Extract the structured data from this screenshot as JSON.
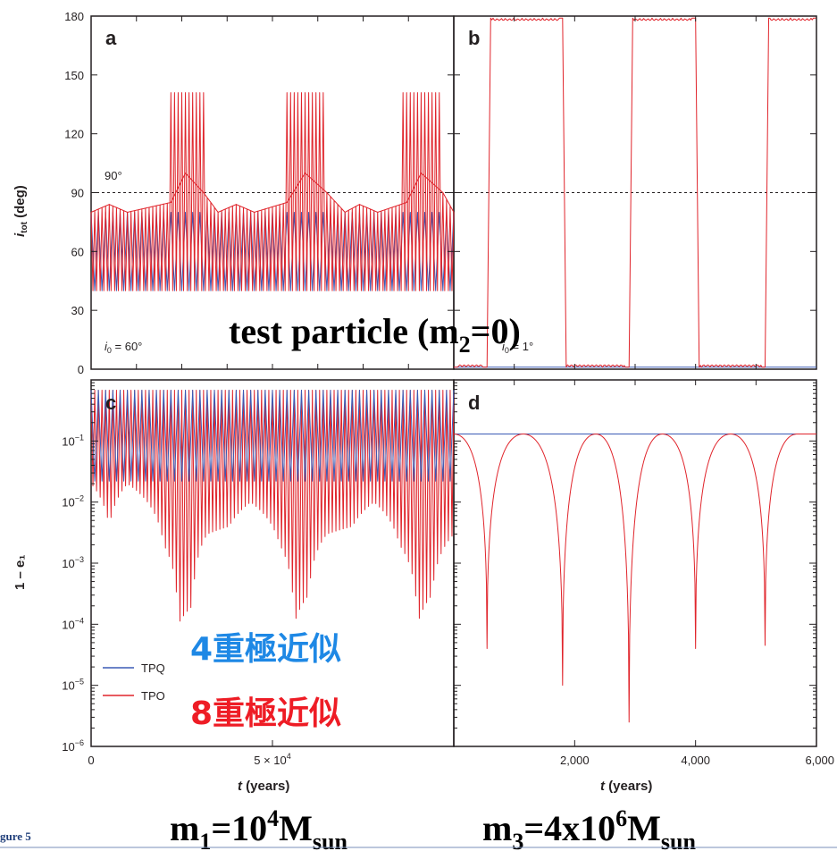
{
  "colors": {
    "tpq": "#3b5bb5",
    "tpo": "#e0242b",
    "frame": "#231f20",
    "jp_blue": "#1e88e5",
    "jp_red": "#ee1c25"
  },
  "figure_label": "gure 5",
  "overlay": {
    "test_particle_prefix": "test particle (m",
    "test_particle_sub": "2",
    "test_particle_suffix": "=0)",
    "mass_m1": "m",
    "mass_m1_sub": "1",
    "mass_m1_eq": "=10",
    "mass_m1_exp": "4",
    "mass_m1_unit": "M",
    "mass_m1_unit_sub": "sun",
    "mass_m3": "m",
    "mass_m3_sub": "3",
    "mass_m3_eq": "=4x10",
    "mass_m3_exp": "6",
    "mass_m3_unit": "M",
    "mass_m3_unit_sub": "sun",
    "quad_label": "4重極近似",
    "oct_label": "8重極近似"
  },
  "chart_data": [
    {
      "panel": "a",
      "type": "line",
      "ylabel_main": "i",
      "ylabel_sub": "tot",
      "ylabel_suffix": " (deg)",
      "ylim": [
        0,
        180
      ],
      "yticks": [
        "0",
        "30",
        "60",
        "90",
        "120",
        "150",
        "180"
      ],
      "xlim": [
        0,
        100000
      ],
      "xticks": [],
      "hline": {
        "y": 90,
        "label": "90°"
      },
      "annotation_main": "i",
      "annotation_sub": "0",
      "annotation_suffix": " = 60°",
      "series": [
        {
          "name": "TPQ",
          "band": [
            40,
            80
          ],
          "period": 2000
        },
        {
          "name": "TPO",
          "low": 40,
          "envelope": [
            [
              0,
              80
            ],
            [
              5000,
              84
            ],
            [
              10000,
              80
            ],
            [
              22000,
              85
            ],
            [
              26000,
              100
            ],
            [
              31000,
              90
            ],
            [
              35000,
              80
            ],
            [
              40000,
              84
            ],
            [
              45000,
              80
            ],
            [
              54000,
              85
            ],
            [
              59000,
              100
            ],
            [
              65000,
              90
            ],
            [
              70000,
              80
            ],
            [
              74000,
              84
            ],
            [
              79000,
              80
            ],
            [
              87000,
              85
            ],
            [
              91000,
              100
            ],
            [
              97000,
              90
            ],
            [
              100000,
              80
            ]
          ],
          "spikes": [
            [
              22000,
              31000,
              141
            ],
            [
              54000,
              64000,
              141
            ],
            [
              86000,
              96000,
              141
            ]
          ],
          "period": 1000
        }
      ]
    },
    {
      "panel": "b",
      "type": "line",
      "ylim": [
        0,
        180
      ],
      "xlim": [
        0,
        6000
      ],
      "xticks": [],
      "hline": {
        "y": 90
      },
      "annotation_main": "i",
      "annotation_sub": "0",
      "annotation_suffix": " = 1°",
      "series": [
        {
          "name": "TPQ",
          "values_const": 1
        },
        {
          "name": "TPO",
          "flip_times": [
            [
              0,
              550,
              1
            ],
            [
              550,
              1800,
              179
            ],
            [
              1800,
              2900,
              1
            ],
            [
              2900,
              4000,
              179
            ],
            [
              4000,
              5150,
              1
            ],
            [
              5150,
              6000,
              179
            ]
          ]
        }
      ]
    },
    {
      "panel": "c",
      "type": "line",
      "xlabel_main": "t",
      "xlabel_suffix": " (years)",
      "ylabel": "1 – e₁",
      "yscale": "log",
      "ylim": [
        1e-06,
        1
      ],
      "yticks": [
        {
          "base": "10",
          "exp": "−6"
        },
        {
          "base": "10",
          "exp": "−5"
        },
        {
          "base": "10",
          "exp": "−4"
        },
        {
          "base": "10",
          "exp": "−3"
        },
        {
          "base": "10",
          "exp": "−2"
        },
        {
          "base": "10",
          "exp": "−1"
        }
      ],
      "xlim": [
        0,
        100000
      ],
      "xticks": [
        {
          "value": 0,
          "label": "0"
        },
        {
          "value": 50000,
          "label": "5 × 10",
          "exp": "4"
        }
      ],
      "legend": [
        {
          "name": "TPQ"
        },
        {
          "name": "TPO"
        }
      ],
      "series": [
        {
          "name": "TPQ",
          "min": 0.022,
          "max": 0.68,
          "period": 2000
        },
        {
          "name": "TPO",
          "max": 0.68,
          "period": 1000,
          "min_profile": [
            [
              0,
              0.02
            ],
            [
              5000,
              0.004
            ],
            [
              10000,
              0.02
            ],
            [
              20000,
              0.002
            ],
            [
              24000,
              0.0001
            ],
            [
              28000,
              0.0002
            ],
            [
              32000,
              0.003
            ],
            [
              38000,
              0.004
            ],
            [
              44000,
              0.01
            ],
            [
              52000,
              0.002
            ],
            [
              56000,
              0.0001
            ],
            [
              60000,
              0.0003
            ],
            [
              65000,
              0.003
            ],
            [
              72000,
              0.004
            ],
            [
              78000,
              0.01
            ],
            [
              85000,
              0.002
            ],
            [
              90000,
              0.0001
            ],
            [
              94000,
              0.0003
            ],
            [
              100000,
              0.003
            ]
          ]
        }
      ]
    },
    {
      "panel": "d",
      "type": "line",
      "xlabel_main": "t",
      "xlabel_suffix": " (years)",
      "yscale": "log",
      "ylim": [
        1e-06,
        1
      ],
      "xlim": [
        0,
        6000
      ],
      "xticks": [
        {
          "value": 2000,
          "label": "2,000"
        },
        {
          "value": 4000,
          "label": "4,000"
        },
        {
          "value": 6000,
          "label": "6,000"
        }
      ],
      "series": [
        {
          "name": "TPQ",
          "values_const": 0.13
        },
        {
          "name": "TPO",
          "max": 0.13,
          "minima": [
            [
              550,
              4e-05
            ],
            [
              1800,
              1e-05
            ],
            [
              2900,
              2.5e-06
            ],
            [
              4000,
              4e-05
            ],
            [
              5150,
              4.5e-05
            ]
          ],
          "maxima": [
            0,
            1150,
            2350,
            3450,
            4580,
            5680,
            6000
          ]
        }
      ]
    }
  ]
}
